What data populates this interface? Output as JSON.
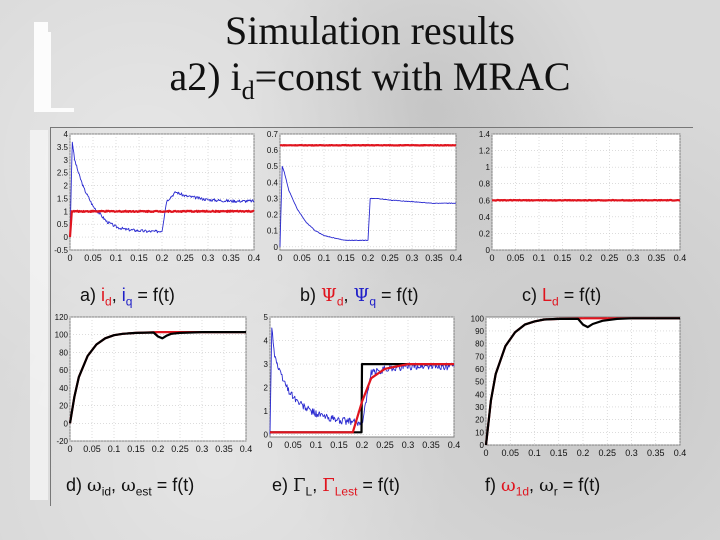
{
  "title": {
    "line1": "Simulation results",
    "line2_prefix": "a2) i",
    "line2_sub": "d",
    "line2_suffix": "=const with MRAC"
  },
  "captions": {
    "a": {
      "prefix": "a) ",
      "v1": "i",
      "s1": "d",
      "sep": ", ",
      "v2": "i",
      "s2": "q",
      "suffix": " = f(t)"
    },
    "b": {
      "prefix": "b) ",
      "v1": "Ψ",
      "s1": "d",
      "sep": ", ",
      "v2": "Ψ",
      "s2": "q",
      "suffix": " = f(t)"
    },
    "c": {
      "prefix": "c)  ",
      "v1": "L",
      "s1": "d",
      "suffix": " = f(t)"
    },
    "d": {
      "prefix": "d) ",
      "v1": "ω",
      "s1": "id",
      "sep": ", ",
      "v2": "ω",
      "s2": "est",
      "suffix": " = f(t)"
    },
    "e": {
      "prefix": "e) ",
      "v1": "Γ",
      "s1": "L",
      "sep": ", ",
      "v2": "Γ",
      "s2": "Lest",
      "suffix": " = f(t)"
    },
    "f": {
      "prefix": "f) ",
      "v1": "ω",
      "s1": "1d",
      "sep": ", ",
      "v2": "ω",
      "s2": "r",
      "suffix": " = f(t)"
    }
  },
  "colors": {
    "blue": "#2a2ad0",
    "red": "#e0141e",
    "black": "#000000",
    "grid": "#c8c8c8"
  },
  "chart_data": [
    {
      "id": "a",
      "type": "line",
      "title": "a) id, iq = f(t)",
      "x_ticks": [
        "0",
        "0.05",
        "0.1",
        "0.15",
        "0.2",
        "0.25",
        "0.3",
        "0.35",
        "0.4"
      ],
      "y_ticks": [
        "-0.5",
        "0",
        "0.5",
        "1",
        "1.5",
        "2",
        "2.5",
        "3",
        "3.5",
        "4"
      ],
      "xlim": [
        0,
        0.4
      ],
      "ylim": [
        -0.5,
        4
      ],
      "series": [
        {
          "name": "iq",
          "color": "blue",
          "noise": 0.05,
          "x": [
            0,
            0.005,
            0.01,
            0.02,
            0.03,
            0.05,
            0.08,
            0.1,
            0.12,
            0.15,
            0.17,
            0.18,
            0.19,
            0.2,
            0.21,
            0.23,
            0.25,
            0.3,
            0.35,
            0.4
          ],
          "y": [
            0,
            3.7,
            3.0,
            2.4,
            1.9,
            1.2,
            0.6,
            0.4,
            0.3,
            0.25,
            0.22,
            0.22,
            0.22,
            0.25,
            1.4,
            1.75,
            1.6,
            1.45,
            1.4,
            1.4
          ]
        },
        {
          "name": "id",
          "color": "red",
          "noise": 0.02,
          "x": [
            0,
            0.004,
            0.4
          ],
          "y": [
            0,
            1.0,
            1.0
          ]
        }
      ]
    },
    {
      "id": "b",
      "type": "line",
      "title": "b) Ψd, Ψq = f(t)",
      "x_ticks": [
        "0",
        "0.05",
        "0.1",
        "0.15",
        "0.2",
        "0.25",
        "0.3",
        "0.35",
        "0.4"
      ],
      "y_ticks": [
        "0",
        "0.1",
        "0.2",
        "0.3",
        "0.4",
        "0.5",
        "0.6",
        "0.7"
      ],
      "xlim": [
        0,
        0.4
      ],
      "ylim": [
        -0.02,
        0.7
      ],
      "series": [
        {
          "name": "Ψq",
          "color": "blue",
          "noise": 0.01,
          "x": [
            0,
            0.005,
            0.01,
            0.02,
            0.04,
            0.06,
            0.08,
            0.1,
            0.13,
            0.15,
            0.2,
            0.205,
            0.22,
            0.25,
            0.3,
            0.35,
            0.4
          ],
          "y": [
            0,
            0.5,
            0.46,
            0.35,
            0.23,
            0.15,
            0.1,
            0.07,
            0.05,
            0.04,
            0.04,
            0.3,
            0.3,
            0.29,
            0.28,
            0.27,
            0.27
          ]
        },
        {
          "name": "Ψd",
          "color": "red",
          "noise": 0.008,
          "x": [
            0,
            0.003,
            0.4
          ],
          "y": [
            0.63,
            0.63,
            0.63
          ]
        }
      ]
    },
    {
      "id": "c",
      "type": "line",
      "title": "c) Ld = f(t)",
      "x_ticks": [
        "0",
        "0.05",
        "0.1",
        "0.15",
        "0.2",
        "0.25",
        "0.3",
        "0.35",
        "0.4"
      ],
      "y_ticks": [
        "0",
        "0.2",
        "0.4",
        "0.6",
        "0.8",
        "1",
        "1.2",
        "1.4"
      ],
      "xlim": [
        0,
        0.4
      ],
      "ylim": [
        0,
        1.4
      ],
      "series": [
        {
          "name": "Ld",
          "color": "red",
          "noise": 0.01,
          "x": [
            0,
            0.005,
            0.4
          ],
          "y": [
            0.6,
            0.6,
            0.6
          ]
        }
      ]
    },
    {
      "id": "d",
      "type": "line",
      "title": "d) ωid, ωest = f(t)",
      "x_ticks": [
        "0",
        "0.05",
        "0.1",
        "0.15",
        "0.2",
        "0.25",
        "0.3",
        "0.35",
        "0.4"
      ],
      "y_ticks": [
        "-20",
        "0",
        "20",
        "40",
        "60",
        "80",
        "100",
        "120"
      ],
      "xlim": [
        0,
        0.4
      ],
      "ylim": [
        -20,
        120
      ],
      "series": [
        {
          "name": "ωid",
          "color": "red",
          "noise": 0.0,
          "x": [
            0,
            0.01,
            0.02,
            0.04,
            0.06,
            0.08,
            0.1,
            0.12,
            0.15,
            0.2,
            0.3,
            0.4
          ],
          "y": [
            0,
            30,
            52,
            76,
            89,
            96,
            99.5,
            101,
            102,
            103,
            103,
            103
          ]
        },
        {
          "name": "ωest",
          "color": "black",
          "noise": 0.0,
          "x": [
            0,
            0.01,
            0.02,
            0.04,
            0.06,
            0.08,
            0.1,
            0.12,
            0.15,
            0.19,
            0.2,
            0.21,
            0.22,
            0.23,
            0.25,
            0.3,
            0.4
          ],
          "y": [
            0,
            30,
            52,
            76,
            89,
            96,
            99.5,
            101,
            102,
            102.5,
            98,
            96,
            99,
            101,
            102,
            103,
            103
          ]
        }
      ]
    },
    {
      "id": "e",
      "type": "line",
      "title": "e) ΓL, ΓLest = f(t)",
      "x_ticks": [
        "0",
        "0.05",
        "0.1",
        "0.15",
        "0.2",
        "0.25",
        "0.3",
        "0.35",
        "0.4"
      ],
      "y_ticks": [
        "0",
        "1",
        "2",
        "3",
        "4",
        "5"
      ],
      "xlim": [
        0,
        0.4
      ],
      "ylim": [
        -0.1,
        5
      ],
      "series": [
        {
          "name": "ΓLest",
          "color": "blue",
          "noise": 0.12,
          "x": [
            0,
            0.004,
            0.01,
            0.02,
            0.04,
            0.06,
            0.08,
            0.1,
            0.12,
            0.15,
            0.2,
            0.22,
            0.25,
            0.3,
            0.4
          ],
          "y": [
            0,
            4.6,
            3.4,
            2.7,
            1.9,
            1.4,
            1.1,
            0.9,
            0.75,
            0.6,
            0.5,
            2.6,
            2.8,
            2.9,
            2.9
          ]
        },
        {
          "name": "ΓL",
          "color": "black",
          "noise": 0.0,
          "x": [
            0,
            0.199,
            0.2,
            0.4
          ],
          "y": [
            0.1,
            0.1,
            3.0,
            3.0
          ]
        },
        {
          "name": "ΓLest-red",
          "color": "red",
          "noise": 0.0,
          "x": [
            0,
            0.18,
            0.2,
            0.22,
            0.25,
            0.3,
            0.4
          ],
          "y": [
            0.1,
            0.1,
            1.4,
            2.4,
            2.8,
            3.0,
            3.0
          ]
        }
      ]
    },
    {
      "id": "f",
      "type": "line",
      "title": "f) ω1d, ωr = f(t)",
      "x_ticks": [
        "0",
        "0.05",
        "0.1",
        "0.15",
        "0.2",
        "0.25",
        "0.3",
        "0.35",
        "0.4"
      ],
      "y_ticks": [
        "0",
        "10",
        "20",
        "30",
        "40",
        "50",
        "60",
        "70",
        "80",
        "90",
        "100"
      ],
      "xlim": [
        0,
        0.4
      ],
      "ylim": [
        0,
        101
      ],
      "series": [
        {
          "name": "ωr-red",
          "color": "red",
          "noise": 0.0,
          "x": [
            0,
            0.01,
            0.02,
            0.04,
            0.06,
            0.08,
            0.1,
            0.12,
            0.15,
            0.2,
            0.3,
            0.4
          ],
          "y": [
            0,
            35,
            56,
            78,
            89,
            95,
            97.5,
            99,
            99.5,
            100,
            100,
            100
          ]
        },
        {
          "name": "ω1d",
          "color": "black",
          "noise": 0.0,
          "x": [
            0,
            0.01,
            0.02,
            0.04,
            0.06,
            0.08,
            0.1,
            0.12,
            0.15,
            0.19,
            0.2,
            0.21,
            0.22,
            0.24,
            0.27,
            0.3,
            0.4
          ],
          "y": [
            0,
            35,
            56,
            78,
            89,
            95,
            97.5,
            99,
            99.5,
            99.5,
            95,
            93,
            95.5,
            98,
            99.5,
            100,
            100
          ]
        }
      ]
    }
  ]
}
